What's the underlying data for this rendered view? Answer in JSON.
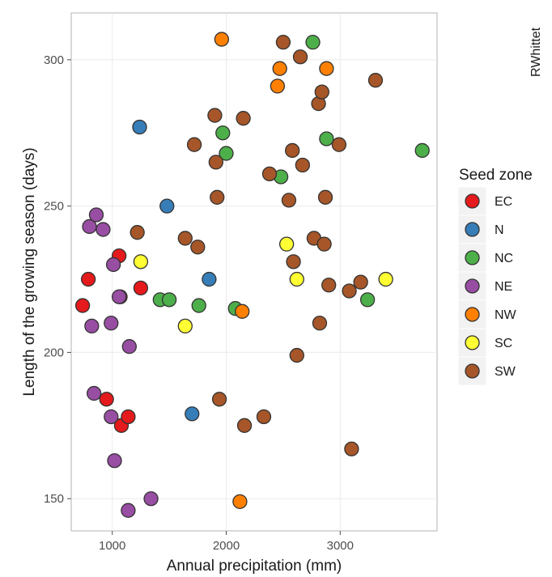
{
  "credit": "RWhittet",
  "chart_data": {
    "type": "scatter",
    "xlabel": "Annual precipitation (mm)",
    "ylabel": "Length of the growing season (days)",
    "xlim": [
      640,
      3850
    ],
    "ylim": [
      139,
      316
    ],
    "x_ticks": [
      1000,
      2000,
      3000
    ],
    "y_ticks": [
      150,
      200,
      250,
      300
    ],
    "x_tick_labels": [
      "1000",
      "2000",
      "3000"
    ],
    "y_tick_labels": [
      "150",
      "200",
      "250",
      "300"
    ],
    "grid": true,
    "legend": {
      "title": "Seed zone",
      "position": "right"
    },
    "series": [
      {
        "name": "EC",
        "color": "#e41a1c",
        "points": [
          [
            740,
            216
          ],
          [
            790,
            225
          ],
          [
            950,
            184
          ],
          [
            1060,
            233
          ],
          [
            1070,
            219
          ],
          [
            1080,
            175
          ],
          [
            1140,
            178
          ],
          [
            1250,
            222
          ]
        ]
      },
      {
        "name": "N",
        "color": "#377eb8",
        "points": [
          [
            1240,
            277
          ],
          [
            1480,
            250
          ],
          [
            1700,
            179
          ],
          [
            1850,
            225
          ]
        ]
      },
      {
        "name": "NC",
        "color": "#4daf4a",
        "points": [
          [
            1420,
            218
          ],
          [
            1500,
            218
          ],
          [
            1760,
            216
          ],
          [
            1970,
            275
          ],
          [
            2000,
            268
          ],
          [
            2080,
            215
          ],
          [
            2480,
            260
          ],
          [
            2760,
            306
          ],
          [
            2880,
            273
          ],
          [
            3240,
            218
          ],
          [
            3720,
            269
          ]
        ]
      },
      {
        "name": "NE",
        "color": "#984ea3",
        "points": [
          [
            800,
            243
          ],
          [
            820,
            209
          ],
          [
            840,
            186
          ],
          [
            860,
            247
          ],
          [
            920,
            242
          ],
          [
            990,
            178
          ],
          [
            990,
            210
          ],
          [
            1010,
            230
          ],
          [
            1020,
            163
          ],
          [
            1060,
            219
          ],
          [
            1140,
            146
          ],
          [
            1150,
            202
          ],
          [
            1340,
            150
          ]
        ]
      },
      {
        "name": "NW",
        "color": "#ff7f00",
        "points": [
          [
            1960,
            307
          ],
          [
            2120,
            149
          ],
          [
            2140,
            214
          ],
          [
            2450,
            291
          ],
          [
            2470,
            297
          ],
          [
            2880,
            297
          ]
        ]
      },
      {
        "name": "SC",
        "color": "#ffff33",
        "points": [
          [
            1250,
            231
          ],
          [
            1640,
            209
          ],
          [
            2530,
            237
          ],
          [
            2620,
            225
          ],
          [
            3400,
            225
          ]
        ]
      },
      {
        "name": "SW",
        "color": "#a65628",
        "points": [
          [
            1220,
            241
          ],
          [
            1640,
            239
          ],
          [
            1720,
            271
          ],
          [
            1750,
            236
          ],
          [
            1900,
            281
          ],
          [
            1910,
            265
          ],
          [
            1920,
            253
          ],
          [
            1940,
            184
          ],
          [
            2150,
            280
          ],
          [
            2160,
            175
          ],
          [
            2330,
            178
          ],
          [
            2380,
            261
          ],
          [
            2500,
            306
          ],
          [
            2550,
            252
          ],
          [
            2580,
            269
          ],
          [
            2590,
            231
          ],
          [
            2620,
            199
          ],
          [
            2650,
            301
          ],
          [
            2670,
            264
          ],
          [
            2770,
            239
          ],
          [
            2810,
            285
          ],
          [
            2820,
            210
          ],
          [
            2840,
            289
          ],
          [
            2860,
            237
          ],
          [
            2870,
            253
          ],
          [
            2900,
            223
          ],
          [
            2990,
            271
          ],
          [
            3080,
            221
          ],
          [
            3100,
            167
          ],
          [
            3180,
            224
          ],
          [
            3310,
            293
          ]
        ]
      }
    ]
  }
}
